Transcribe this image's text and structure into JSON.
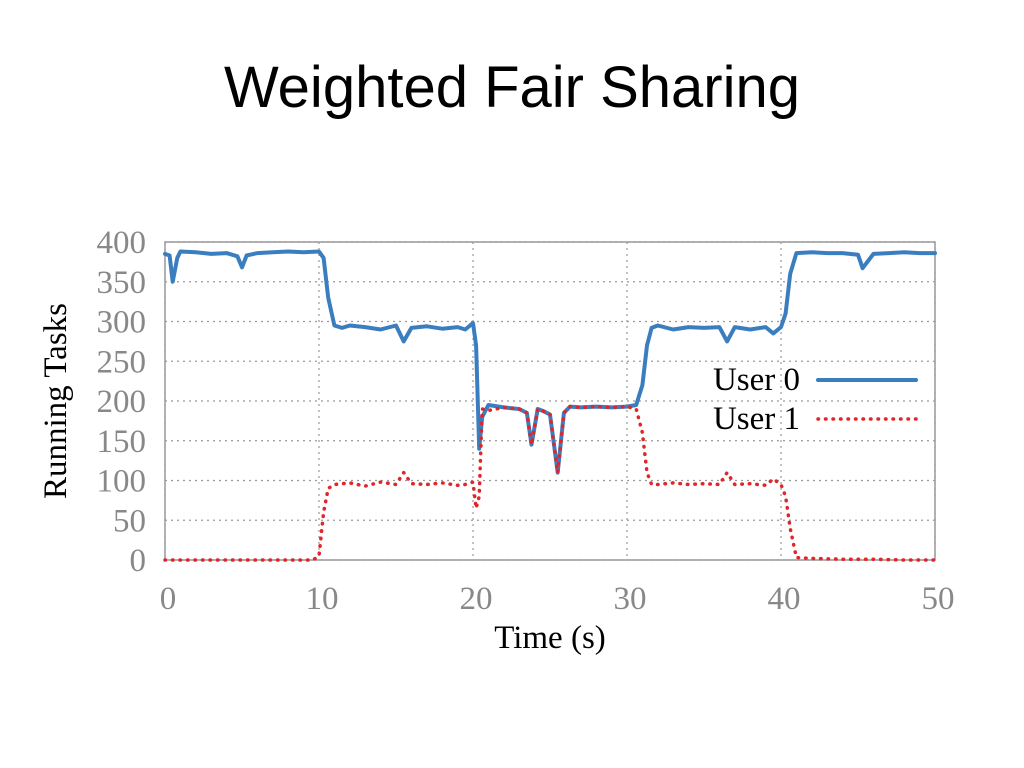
{
  "slide": {
    "title": "Weighted Fair Sharing"
  },
  "chart_data": {
    "type": "line",
    "title": "Weighted Fair Sharing",
    "xlabel": "Time (s)",
    "ylabel": "Running Tasks",
    "xlim": [
      0,
      50
    ],
    "ylim": [
      0,
      400
    ],
    "xticks": [
      0,
      10,
      20,
      30,
      40,
      50
    ],
    "yticks": [
      0,
      50,
      100,
      150,
      200,
      250,
      300,
      350,
      400
    ],
    "grid": true,
    "legend_position": "right",
    "series": [
      {
        "name": "User 0",
        "color": "#3a7ebf",
        "style": "solid",
        "x": [
          0,
          0.3,
          0.5,
          0.8,
          1,
          2,
          3,
          4,
          4.7,
          5,
          5.3,
          6,
          7,
          8,
          9,
          10,
          10.3,
          10.6,
          11,
          11.5,
          12,
          13,
          14,
          15,
          15.5,
          16,
          17,
          18,
          19,
          19.5,
          20,
          20.2,
          20.4,
          20.6,
          21,
          22,
          23,
          23.5,
          23.8,
          24.2,
          24.6,
          25,
          25.5,
          25.9,
          26.3,
          27,
          28,
          29,
          30,
          30.6,
          31,
          31.3,
          31.6,
          32,
          33,
          34,
          35,
          36,
          36.5,
          37,
          38,
          39,
          39.5,
          40,
          40.3,
          40.6,
          41,
          42,
          43,
          44,
          45,
          45.3,
          46,
          47,
          48,
          49,
          50
        ],
        "y": [
          385,
          383,
          350,
          380,
          388,
          387,
          385,
          386,
          382,
          368,
          383,
          386,
          387,
          388,
          387,
          388,
          380,
          330,
          295,
          292,
          295,
          293,
          290,
          295,
          275,
          292,
          294,
          291,
          293,
          290,
          298,
          270,
          140,
          180,
          195,
          192,
          190,
          185,
          145,
          190,
          187,
          183,
          110,
          185,
          193,
          192,
          193,
          192,
          193,
          195,
          220,
          270,
          292,
          295,
          290,
          293,
          292,
          293,
          275,
          293,
          290,
          293,
          285,
          293,
          310,
          360,
          386,
          387,
          386,
          386,
          384,
          367,
          385,
          386,
          387,
          386,
          386
        ]
      },
      {
        "name": "User 1",
        "color": "#e0262b",
        "style": "dotted",
        "x": [
          0,
          2,
          4,
          6,
          8,
          9.6,
          10,
          10.3,
          10.6,
          11,
          12,
          13,
          14,
          15,
          15.5,
          16,
          17,
          18,
          19,
          19.5,
          20,
          20.2,
          20.4,
          20.6,
          21,
          22,
          23,
          23.5,
          23.8,
          24.2,
          24.6,
          25,
          25.5,
          25.9,
          26.3,
          27,
          28,
          29,
          30,
          30.6,
          31,
          31.3,
          31.6,
          32,
          33,
          34,
          35,
          36,
          36.5,
          37,
          38,
          39,
          39.5,
          40,
          40.3,
          40.6,
          41,
          42,
          44,
          46,
          48,
          50
        ],
        "y": [
          0,
          0,
          0,
          0,
          0,
          0,
          5,
          60,
          90,
          95,
          97,
          93,
          98,
          95,
          110,
          96,
          95,
          97,
          94,
          95,
          98,
          65,
          80,
          190,
          188,
          192,
          190,
          185,
          145,
          190,
          187,
          183,
          110,
          185,
          193,
          192,
          193,
          192,
          193,
          190,
          160,
          110,
          95,
          95,
          97,
          95,
          96,
          95,
          110,
          95,
          96,
          94,
          102,
          95,
          80,
          40,
          3,
          2,
          1,
          1,
          0,
          0
        ]
      }
    ]
  }
}
